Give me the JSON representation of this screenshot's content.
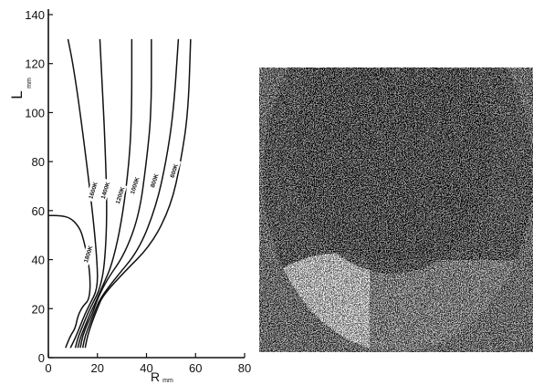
{
  "chart_data": {
    "type": "line",
    "title": "",
    "xlabel": "R",
    "xunit": "mm",
    "ylabel": "L",
    "yunit": "mm",
    "xlim": [
      0,
      80
    ],
    "ylim": [
      0,
      140
    ],
    "x_ticks": [
      "0",
      "20",
      "40",
      "60",
      "80"
    ],
    "y_ticks": [
      "0",
      "20",
      "40",
      "60",
      "80",
      "100",
      "120",
      "140"
    ],
    "grid": false,
    "series": [
      {
        "name": "1800K",
        "points": [
          [
            7,
            4
          ],
          [
            9,
            9
          ],
          [
            11,
            12
          ],
          [
            12,
            17
          ],
          [
            14,
            21
          ],
          [
            17,
            24
          ],
          [
            17,
            36
          ],
          [
            14,
            50
          ],
          [
            12,
            54
          ],
          [
            9,
            57
          ],
          [
            5,
            58
          ],
          [
            0,
            58
          ]
        ]
      },
      {
        "name": "1600K",
        "points": [
          [
            9,
            4
          ],
          [
            11,
            8
          ],
          [
            13,
            13
          ],
          [
            15,
            18
          ],
          [
            17,
            22
          ],
          [
            20,
            28
          ],
          [
            20,
            38
          ],
          [
            18,
            60
          ],
          [
            13,
            100
          ],
          [
            10,
            120
          ],
          [
            8,
            130
          ]
        ]
      },
      {
        "name": "1400K",
        "points": [
          [
            11,
            4
          ],
          [
            12,
            8
          ],
          [
            14,
            13
          ],
          [
            16,
            18
          ],
          [
            18,
            22
          ],
          [
            21,
            28
          ],
          [
            23,
            38
          ],
          [
            24,
            60
          ],
          [
            23,
            90
          ],
          [
            22,
            110
          ],
          [
            21,
            130
          ]
        ]
      },
      {
        "name": "1200K",
        "points": [
          [
            12,
            4
          ],
          [
            13,
            8
          ],
          [
            15,
            13
          ],
          [
            17,
            18
          ],
          [
            19,
            22
          ],
          [
            22,
            29
          ],
          [
            26,
            38
          ],
          [
            30,
            56
          ],
          [
            33,
            80
          ],
          [
            34,
            100
          ],
          [
            34,
            130
          ]
        ]
      },
      {
        "name": "1000K",
        "points": [
          [
            13,
            4
          ],
          [
            14,
            9
          ],
          [
            16,
            14
          ],
          [
            18,
            18
          ],
          [
            20,
            24
          ],
          [
            24,
            32
          ],
          [
            31,
            42
          ],
          [
            37,
            58
          ],
          [
            40,
            80
          ],
          [
            42,
            100
          ],
          [
            42,
            130
          ]
        ]
      },
      {
        "name": "800K",
        "points": [
          [
            14,
            4
          ],
          [
            15,
            9
          ],
          [
            17,
            14
          ],
          [
            19,
            19
          ],
          [
            21,
            24
          ],
          [
            27,
            32
          ],
          [
            37,
            44
          ],
          [
            44,
            62
          ],
          [
            48,
            80
          ],
          [
            51,
            100
          ],
          [
            53,
            130
          ]
        ]
      },
      {
        "name": "600K",
        "points": [
          [
            15,
            4
          ],
          [
            16,
            9
          ],
          [
            18,
            15
          ],
          [
            20,
            20
          ],
          [
            22,
            25
          ],
          [
            30,
            34
          ],
          [
            42,
            46
          ],
          [
            50,
            62
          ],
          [
            54,
            80
          ],
          [
            57,
            100
          ],
          [
            58,
            130
          ]
        ]
      }
    ],
    "isotherm_labels": [
      "1800K",
      "1600K",
      "1400K",
      "1200K",
      "1000K",
      "800K",
      "600K"
    ]
  },
  "photo": {
    "background_color": "#4a4a4a",
    "dark_color": "#111111",
    "light_color": "#d8d8d8"
  }
}
